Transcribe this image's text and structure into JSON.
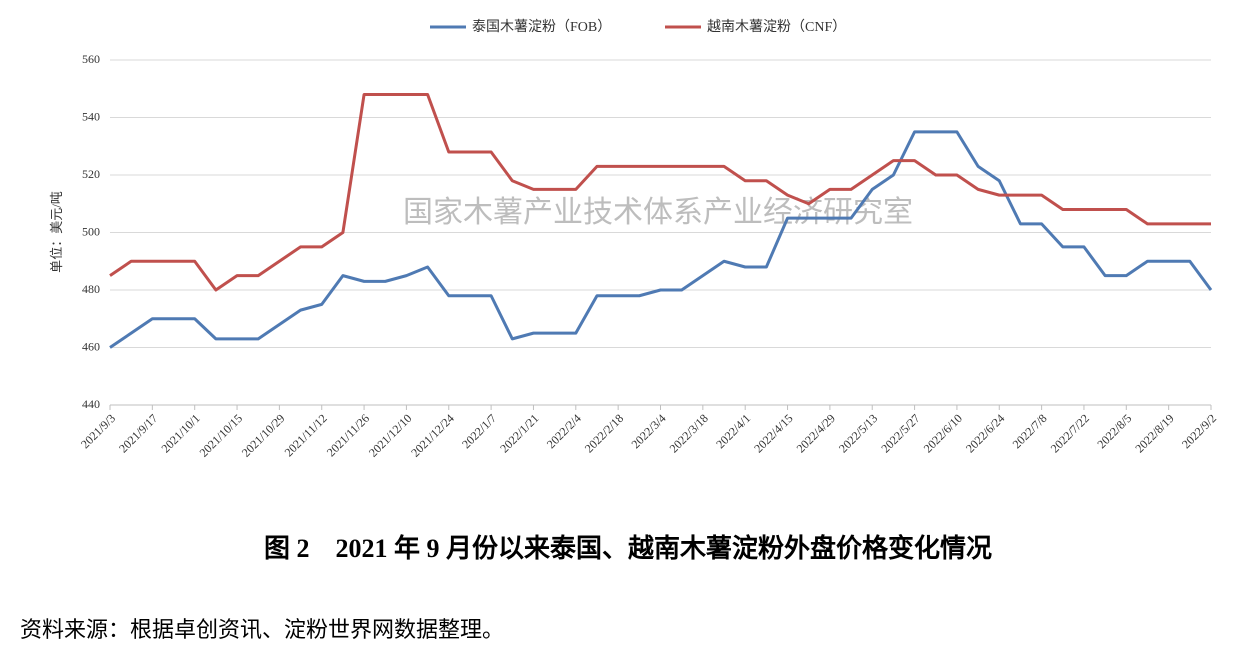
{
  "chart_data": {
    "type": "line",
    "y_label": "单位：美元/吨",
    "watermark": "国家木薯产业技术体系产业经济研究室",
    "caption": "图 2　2021 年 9 月份以来泰国、越南木薯淀粉外盘价格变化情况",
    "source": "资料来源：根据卓创资讯、淀粉世界网数据整理。",
    "categories": [
      "2021/9/3",
      null,
      "2021/9/17",
      null,
      "2021/10/1",
      null,
      "2021/10/15",
      null,
      "2021/10/29",
      null,
      "2021/11/12",
      null,
      "2021/11/26",
      null,
      "2021/12/10",
      null,
      "2021/12/24",
      null,
      "2022/1/7",
      null,
      "2022/1/21",
      null,
      "2022/2/4",
      null,
      "2022/2/18",
      null,
      "2022/3/4",
      null,
      "2022/3/18",
      null,
      "2022/4/1",
      null,
      "2022/4/15",
      null,
      "2022/4/29",
      null,
      "2022/5/13",
      null,
      "2022/5/27",
      null,
      "2022/6/10",
      null,
      "2022/6/24",
      null,
      "2022/7/8",
      null,
      "2022/7/22",
      null,
      "2022/8/5",
      null,
      "2022/8/19",
      null,
      "2022/9/2"
    ],
    "series": [
      {
        "name": "泰国木薯淀粉（FOB）",
        "color": "#4f7ab3",
        "values": [
          460,
          465,
          470,
          470,
          470,
          463,
          463,
          463,
          468,
          473,
          475,
          485,
          483,
          483,
          485,
          488,
          478,
          478,
          478,
          463,
          465,
          465,
          465,
          478,
          478,
          478,
          480,
          480,
          485,
          490,
          488,
          488,
          505,
          505,
          505,
          505,
          515,
          520,
          535,
          535,
          535,
          523,
          518,
          503,
          503,
          495,
          495,
          485,
          485,
          490,
          490,
          490,
          480
        ]
      },
      {
        "name": "越南木薯淀粉（CNF）",
        "color": "#c0504d",
        "values": [
          485,
          490,
          490,
          490,
          490,
          480,
          485,
          485,
          490,
          495,
          495,
          500,
          548,
          548,
          548,
          548,
          528,
          528,
          528,
          518,
          515,
          515,
          515,
          523,
          523,
          523,
          523,
          523,
          523,
          523,
          518,
          518,
          513,
          510,
          515,
          515,
          520,
          525,
          525,
          520,
          520,
          515,
          513,
          513,
          513,
          508,
          508,
          508,
          508,
          503,
          503,
          503,
          503
        ]
      }
    ],
    "ylim": [
      440,
      560
    ],
    "yticks": [
      440,
      460,
      480,
      500,
      520,
      540,
      560
    ],
    "grid": true,
    "legend": "top"
  }
}
